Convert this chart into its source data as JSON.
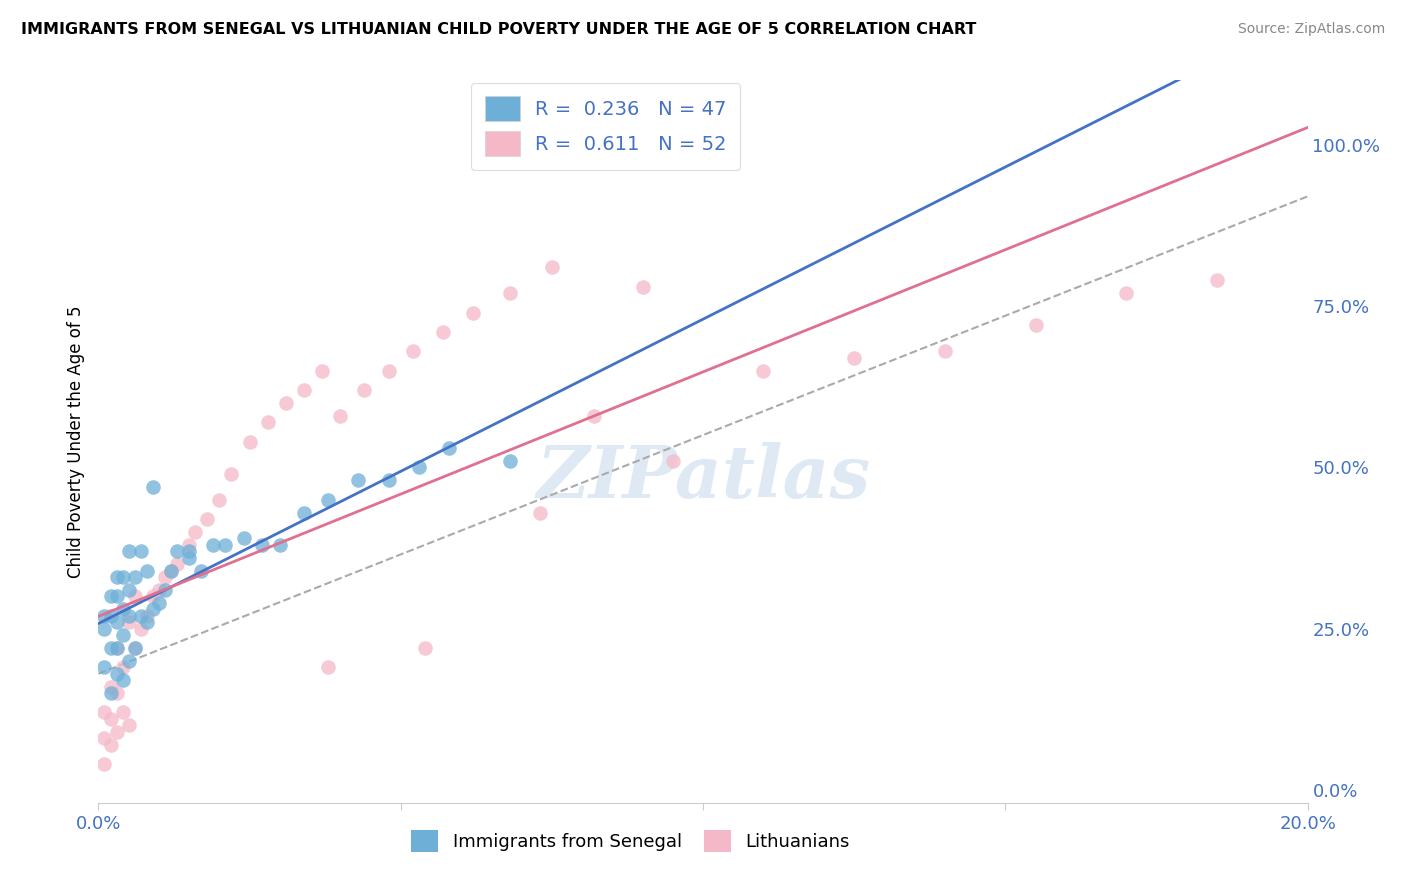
{
  "title": "IMMIGRANTS FROM SENEGAL VS LITHUANIAN CHILD POVERTY UNDER THE AGE OF 5 CORRELATION CHART",
  "source": "Source: ZipAtlas.com",
  "ylabel": "Child Poverty Under the Age of 5",
  "ylabel_right_ticks": [
    "100.0%",
    "75.0%",
    "50.0%",
    "25.0%",
    "0.0%"
  ],
  "ylabel_right_vals": [
    1.0,
    0.75,
    0.5,
    0.25,
    0.0
  ],
  "legend_label1": "Immigrants from Senegal",
  "legend_label2": "Lithuanians",
  "R1": "0.236",
  "N1": "47",
  "R2": "0.611",
  "N2": "52",
  "color1": "#6dafd7",
  "color2": "#f5b8c8",
  "trendline1_color": "#4472c4",
  "trendline1_dash": "solid",
  "trendline2_color": "#e07090",
  "trendline2_dash": "solid",
  "trendline_dashed_color": "#aaaaaa",
  "background_color": "#ffffff",
  "watermark": "ZIPatlas",
  "xlim": [
    0,
    0.2
  ],
  "ylim": [
    -0.02,
    1.1
  ],
  "senegal_x": [
    0.001,
    0.001,
    0.001,
    0.002,
    0.002,
    0.002,
    0.002,
    0.003,
    0.003,
    0.003,
    0.003,
    0.003,
    0.004,
    0.004,
    0.004,
    0.004,
    0.005,
    0.005,
    0.005,
    0.005,
    0.006,
    0.006,
    0.007,
    0.007,
    0.008,
    0.008,
    0.009,
    0.009,
    0.01,
    0.011,
    0.012,
    0.013,
    0.015,
    0.015,
    0.017,
    0.019,
    0.021,
    0.024,
    0.027,
    0.03,
    0.034,
    0.038,
    0.043,
    0.048,
    0.053,
    0.058,
    0.068
  ],
  "senegal_y": [
    0.19,
    0.25,
    0.27,
    0.15,
    0.22,
    0.27,
    0.3,
    0.18,
    0.22,
    0.26,
    0.3,
    0.33,
    0.17,
    0.24,
    0.28,
    0.33,
    0.2,
    0.27,
    0.31,
    0.37,
    0.22,
    0.33,
    0.27,
    0.37,
    0.26,
    0.34,
    0.28,
    0.47,
    0.29,
    0.31,
    0.34,
    0.37,
    0.36,
    0.37,
    0.34,
    0.38,
    0.38,
    0.39,
    0.38,
    0.38,
    0.43,
    0.45,
    0.48,
    0.48,
    0.5,
    0.53,
    0.51
  ],
  "lithuanian_x": [
    0.001,
    0.001,
    0.001,
    0.002,
    0.002,
    0.002,
    0.003,
    0.003,
    0.003,
    0.004,
    0.004,
    0.005,
    0.005,
    0.006,
    0.006,
    0.007,
    0.008,
    0.009,
    0.01,
    0.011,
    0.012,
    0.013,
    0.015,
    0.016,
    0.018,
    0.02,
    0.022,
    0.025,
    0.028,
    0.031,
    0.034,
    0.037,
    0.04,
    0.044,
    0.048,
    0.052,
    0.057,
    0.062,
    0.068,
    0.075,
    0.082,
    0.09,
    0.095,
    0.11,
    0.125,
    0.14,
    0.155,
    0.17,
    0.185,
    0.073,
    0.054,
    0.038
  ],
  "lithuanian_y": [
    0.04,
    0.08,
    0.12,
    0.07,
    0.11,
    0.16,
    0.09,
    0.15,
    0.22,
    0.12,
    0.19,
    0.1,
    0.26,
    0.22,
    0.3,
    0.25,
    0.27,
    0.3,
    0.31,
    0.33,
    0.34,
    0.35,
    0.38,
    0.4,
    0.42,
    0.45,
    0.49,
    0.54,
    0.57,
    0.6,
    0.62,
    0.65,
    0.58,
    0.62,
    0.65,
    0.68,
    0.71,
    0.74,
    0.77,
    0.81,
    0.58,
    0.78,
    0.51,
    0.65,
    0.67,
    0.68,
    0.72,
    0.77,
    0.79,
    0.43,
    0.22,
    0.19
  ]
}
